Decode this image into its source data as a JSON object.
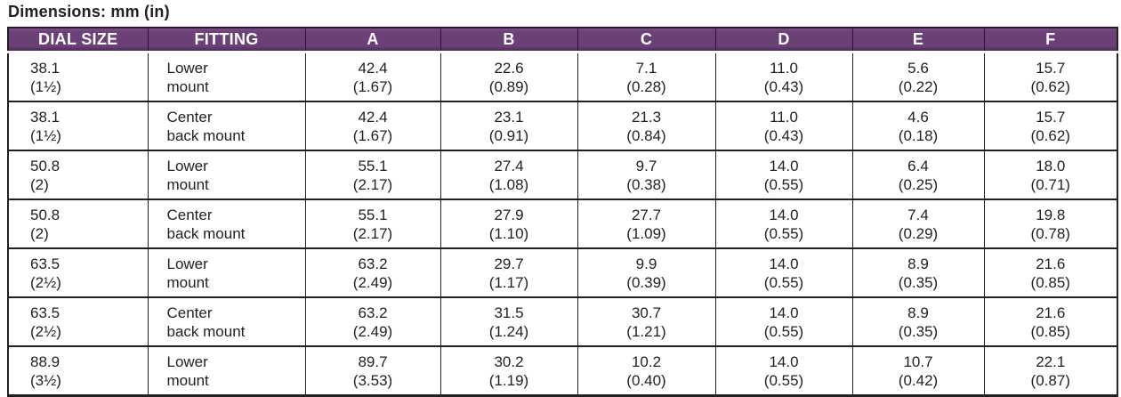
{
  "page": {
    "title": "Dimensions: mm (in)"
  },
  "colors": {
    "header_bg": "#6B4077",
    "header_bg_dark": "#4E2B58",
    "header_top_line": "#2D1733",
    "header_text": "#FFFFFF",
    "border_and_text": "#231F20"
  },
  "table": {
    "headers": [
      "DIAL SIZE",
      "FITTING",
      "A",
      "B",
      "C",
      "D",
      "E",
      "F"
    ],
    "rows": [
      [
        [
          "38.1",
          "(1½)"
        ],
        [
          "Lower",
          "mount"
        ],
        [
          "42.4",
          "(1.67)"
        ],
        [
          "22.6",
          "(0.89)"
        ],
        [
          "7.1",
          "(0.28)"
        ],
        [
          "11.0",
          "(0.43)"
        ],
        [
          "5.6",
          "(0.22)"
        ],
        [
          "15.7",
          "(0.62)"
        ]
      ],
      [
        [
          "38.1",
          "(1½)"
        ],
        [
          "Center",
          "back mount"
        ],
        [
          "42.4",
          "(1.67)"
        ],
        [
          "23.1",
          "(0.91)"
        ],
        [
          "21.3",
          "(0.84)"
        ],
        [
          "11.0",
          "(0.43)"
        ],
        [
          "4.6",
          "(0.18)"
        ],
        [
          "15.7",
          "(0.62)"
        ]
      ],
      [
        [
          "50.8",
          "(2)"
        ],
        [
          "Lower",
          "mount"
        ],
        [
          "55.1",
          "(2.17)"
        ],
        [
          "27.4",
          "(1.08)"
        ],
        [
          "9.7",
          "(0.38)"
        ],
        [
          "14.0",
          "(0.55)"
        ],
        [
          "6.4",
          "(0.25)"
        ],
        [
          "18.0",
          "(0.71)"
        ]
      ],
      [
        [
          "50.8",
          "(2)"
        ],
        [
          "Center",
          "back mount"
        ],
        [
          "55.1",
          "(2.17)"
        ],
        [
          "27.9",
          "(1.10)"
        ],
        [
          "27.7",
          "(1.09)"
        ],
        [
          "14.0",
          "(0.55)"
        ],
        [
          "7.4",
          "(0.29)"
        ],
        [
          "19.8",
          "(0.78)"
        ]
      ],
      [
        [
          "63.5",
          "(2½)"
        ],
        [
          "Lower",
          "mount"
        ],
        [
          "63.2",
          "(2.49)"
        ],
        [
          "29.7",
          "(1.17)"
        ],
        [
          "9.9",
          "(0.39)"
        ],
        [
          "14.0",
          "(0.55)"
        ],
        [
          "8.9",
          "(0.35)"
        ],
        [
          "21.6",
          "(0.85)"
        ]
      ],
      [
        [
          "63.5",
          "(2½)"
        ],
        [
          "Center",
          "back mount"
        ],
        [
          "63.2",
          "(2.49)"
        ],
        [
          "31.5",
          "(1.24)"
        ],
        [
          "30.7",
          "(1.21)"
        ],
        [
          "14.0",
          "(0.55)"
        ],
        [
          "8.9",
          "(0.35)"
        ],
        [
          "21.6",
          "(0.85)"
        ]
      ],
      [
        [
          "88.9",
          "(3½)"
        ],
        [
          "Lower",
          "mount"
        ],
        [
          "89.7",
          "(3.53)"
        ],
        [
          "30.2",
          "(1.19)"
        ],
        [
          "10.2",
          "(0.40)"
        ],
        [
          "14.0",
          "(0.55)"
        ],
        [
          "10.7",
          "(0.42)"
        ],
        [
          "22.1",
          "(0.87)"
        ]
      ]
    ]
  }
}
